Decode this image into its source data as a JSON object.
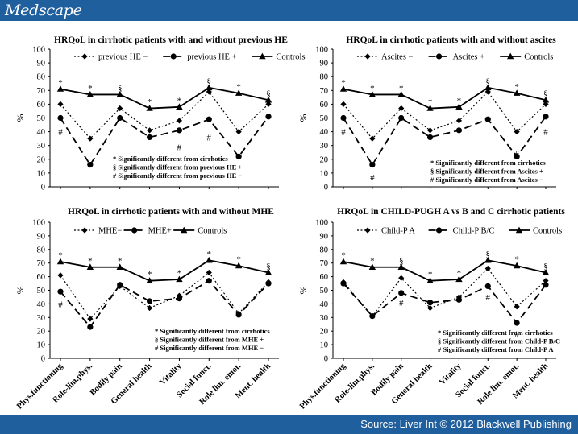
{
  "header": {
    "brand": "Medscape"
  },
  "footer": {
    "source": "Source: Liver Int © 2012 Blackwell Publishing"
  },
  "colors": {
    "bar": "#1f5f9e",
    "ink": "#000000"
  },
  "shared": {
    "categories": [
      "Phys.functioning",
      "Role-lim.phys.",
      "Bodily pain",
      "General health",
      "Vitality",
      "Social funct.",
      "Role lim. emot.",
      "Ment. health"
    ],
    "y_ticks": [
      "0",
      "10",
      "20",
      "30",
      "40",
      "50",
      "60",
      "70",
      "80",
      "90",
      "100"
    ],
    "ylabel": "%"
  },
  "chart_data": [
    {
      "type": "line",
      "title": "HRQoL in cirrhotic patients with and without previous HE",
      "categories": [
        "Phys.functioning",
        "Role-lim.phys.",
        "Bodily pain",
        "General health",
        "Vitality",
        "Social funct.",
        "Role lim. emot.",
        "Ment. health"
      ],
      "ylim": [
        0,
        100
      ],
      "ylabel": "%",
      "show_x_labels": false,
      "legend_position": "top",
      "series": [
        {
          "name": "previous HE −",
          "style": "dotted",
          "marker": "diamond",
          "values": [
            60,
            35,
            57,
            41,
            48,
            69,
            40,
            60
          ]
        },
        {
          "name": "previous HE +",
          "style": "dashed",
          "marker": "circle",
          "values": [
            50,
            16,
            50,
            36,
            41,
            49,
            22,
            51
          ]
        },
        {
          "name": "Controls",
          "style": "solid",
          "marker": "triangle",
          "values": [
            71,
            67,
            67,
            57,
            58,
            72,
            68,
            63
          ]
        }
      ],
      "annotations": [
        {
          "x": 0,
          "y": 76,
          "text": "*"
        },
        {
          "x": 1,
          "y": 72,
          "text": "*"
        },
        {
          "x": 2,
          "y": 72,
          "text": "§"
        },
        {
          "x": 3,
          "y": 62,
          "text": "*"
        },
        {
          "x": 4,
          "y": 63,
          "text": "*"
        },
        {
          "x": 5,
          "y": 77,
          "text": "§"
        },
        {
          "x": 6,
          "y": 73,
          "text": "*"
        },
        {
          "x": 7,
          "y": 68,
          "text": "§"
        },
        {
          "x": 0,
          "y": 40,
          "text": "#"
        },
        {
          "x": 4,
          "y": 29,
          "text": "#"
        },
        {
          "x": 5,
          "y": 36,
          "text": "#"
        }
      ],
      "footnotes": [
        "* Significantly different from cirrhotics",
        "§ Significantly different from previous HE +",
        "# Significantly different from previous HE −"
      ]
    },
    {
      "type": "line",
      "title": "HRQoL in cirrhotic patients with and without ascites",
      "categories": [
        "Phys.functioning",
        "Role-lim.phys.",
        "Bodily pain",
        "General health",
        "Vitality",
        "Social funct.",
        "Role lim. emot.",
        "Ment. health"
      ],
      "ylim": [
        0,
        100
      ],
      "ylabel": "%",
      "show_x_labels": false,
      "legend_position": "top",
      "series": [
        {
          "name": "Ascites −",
          "style": "dotted",
          "marker": "diamond",
          "values": [
            60,
            35,
            57,
            41,
            48,
            69,
            40,
            60
          ]
        },
        {
          "name": "Ascites +",
          "style": "dashed",
          "marker": "circle",
          "values": [
            50,
            16,
            50,
            36,
            41,
            49,
            22,
            51
          ]
        },
        {
          "name": "Controls",
          "style": "solid",
          "marker": "triangle",
          "values": [
            71,
            67,
            67,
            57,
            58,
            72,
            68,
            63
          ]
        }
      ],
      "annotations": [
        {
          "x": 0,
          "y": 76,
          "text": "*"
        },
        {
          "x": 1,
          "y": 72,
          "text": "*"
        },
        {
          "x": 2,
          "y": 72,
          "text": "*"
        },
        {
          "x": 3,
          "y": 62,
          "text": "*"
        },
        {
          "x": 4,
          "y": 63,
          "text": "*"
        },
        {
          "x": 5,
          "y": 77,
          "text": "§"
        },
        {
          "x": 6,
          "y": 73,
          "text": "*"
        },
        {
          "x": 7,
          "y": 68,
          "text": "§"
        },
        {
          "x": 0,
          "y": 40,
          "text": "#"
        },
        {
          "x": 1,
          "y": 7,
          "text": "#"
        },
        {
          "x": 6,
          "y": 24,
          "text": "#"
        },
        {
          "x": 7,
          "y": 40,
          "text": "#"
        }
      ],
      "footnotes": [
        "* Significantly different from cirrhotics",
        "§ Significantly different from Ascites +",
        "# Significantly different from Ascites −"
      ]
    },
    {
      "type": "line",
      "title": "HRQoL in cirrhotic patients with and without MHE",
      "categories": [
        "Phys.functioning",
        "Role-lim.phys.",
        "Bodily pain",
        "General health",
        "Vitality",
        "Social funct.",
        "Role lim. emot.",
        "Ment. health"
      ],
      "ylim": [
        0,
        100
      ],
      "ylabel": "%",
      "show_x_labels": true,
      "legend_position": "top",
      "series": [
        {
          "name": "MHE−",
          "style": "dotted",
          "marker": "diamond",
          "values": [
            61,
            29,
            53,
            37,
            46,
            63,
            33,
            56
          ]
        },
        {
          "name": "MHE+",
          "style": "dashed",
          "marker": "circle",
          "values": [
            49,
            23,
            54,
            42,
            44,
            57,
            32,
            55
          ]
        },
        {
          "name": "Controls",
          "style": "solid",
          "marker": "triangle",
          "values": [
            71,
            67,
            67,
            57,
            58,
            72,
            68,
            63
          ]
        }
      ],
      "annotations": [
        {
          "x": 0,
          "y": 76,
          "text": "*"
        },
        {
          "x": 1,
          "y": 72,
          "text": "*"
        },
        {
          "x": 2,
          "y": 72,
          "text": "*"
        },
        {
          "x": 3,
          "y": 62,
          "text": "*"
        },
        {
          "x": 4,
          "y": 63,
          "text": "*"
        },
        {
          "x": 5,
          "y": 77,
          "text": "*"
        },
        {
          "x": 6,
          "y": 73,
          "text": "*"
        },
        {
          "x": 7,
          "y": 68,
          "text": "§"
        },
        {
          "x": 0,
          "y": 40,
          "text": "#"
        }
      ],
      "footnotes": [
        "* Significantly different from cirrhotics",
        "§ Significantly different from MHE +",
        "# Significantly different from MHE −"
      ]
    },
    {
      "type": "line",
      "title": "HRQoL in CHILD-PUGH A vs B and C cirrhotic patients",
      "categories": [
        "Phys.functioning",
        "Role-lim.phys.",
        "Bodily pain",
        "General health",
        "Vitality",
        "Social funct.",
        "Role lim. emot.",
        "Ment. health"
      ],
      "ylim": [
        0,
        100
      ],
      "ylabel": "%",
      "show_x_labels": true,
      "legend_position": "top",
      "series": [
        {
          "name": "Child-P A",
          "style": "dotted",
          "marker": "diamond",
          "values": [
            56,
            31,
            59,
            37,
            45,
            66,
            38,
            57
          ]
        },
        {
          "name": "Child-P B/C",
          "style": "dashed",
          "marker": "circle",
          "values": [
            55,
            31,
            48,
            41,
            43,
            53,
            26,
            54
          ]
        },
        {
          "name": "Controls",
          "style": "solid",
          "marker": "triangle",
          "values": [
            71,
            67,
            67,
            57,
            58,
            72,
            68,
            63
          ]
        }
      ],
      "annotations": [
        {
          "x": 0,
          "y": 76,
          "text": "*"
        },
        {
          "x": 1,
          "y": 72,
          "text": "*"
        },
        {
          "x": 2,
          "y": 72,
          "text": "§"
        },
        {
          "x": 3,
          "y": 62,
          "text": "*"
        },
        {
          "x": 4,
          "y": 63,
          "text": "*"
        },
        {
          "x": 5,
          "y": 77,
          "text": "§"
        },
        {
          "x": 6,
          "y": 73,
          "text": "*"
        },
        {
          "x": 7,
          "y": 68,
          "text": "§"
        },
        {
          "x": 2,
          "y": 41,
          "text": "#"
        },
        {
          "x": 5,
          "y": 45,
          "text": "#"
        },
        {
          "x": 6,
          "y": 18,
          "text": "#"
        }
      ],
      "footnotes": [
        "* Significantly different from cirrhotics",
        "§ Significantly different from Child-P B/C",
        "# Significantly different from Child-P A"
      ]
    }
  ]
}
